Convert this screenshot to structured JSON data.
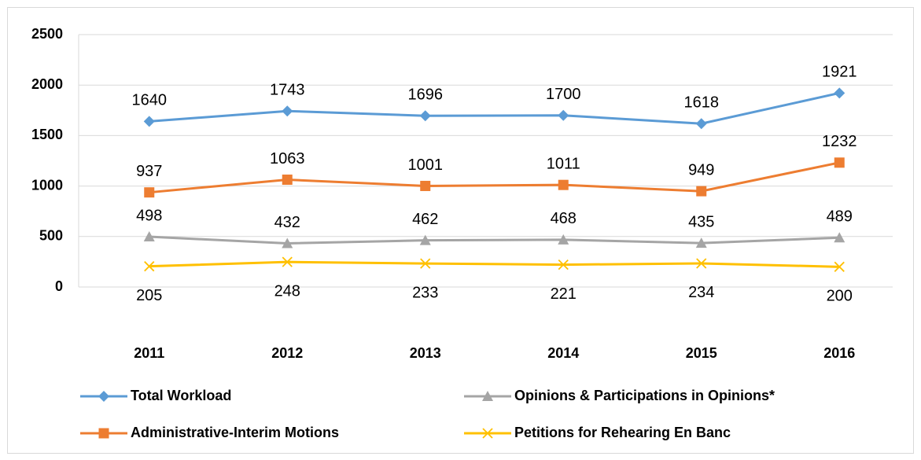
{
  "chart_data": {
    "type": "line",
    "categories": [
      "2011",
      "2012",
      "2013",
      "2014",
      "2015",
      "2016"
    ],
    "series": [
      {
        "name": "Total Workload",
        "color": "#5b9bd5",
        "marker": "diamond",
        "label_position": "above",
        "values": [
          1640,
          1743,
          1696,
          1700,
          1618,
          1921
        ]
      },
      {
        "name": "Administrative-Interim Motions",
        "color": "#ed7d31",
        "marker": "square",
        "label_position": "above",
        "values": [
          937,
          1063,
          1001,
          1011,
          949,
          1232
        ]
      },
      {
        "name": "Opinions & Participations in Opinions*",
        "color": "#a5a5a5",
        "marker": "triangle",
        "label_position": "above",
        "values": [
          498,
          432,
          462,
          468,
          435,
          489
        ]
      },
      {
        "name": "Petitions for Rehearing En Banc",
        "color": "#ffc000",
        "marker": "x",
        "label_position": "below",
        "values": [
          205,
          248,
          233,
          221,
          234,
          200
        ]
      }
    ],
    "ylim": [
      0,
      2500
    ],
    "yticks": [
      0,
      500,
      1000,
      1500,
      2000,
      2500
    ],
    "grid": true,
    "legend": "bottom"
  }
}
